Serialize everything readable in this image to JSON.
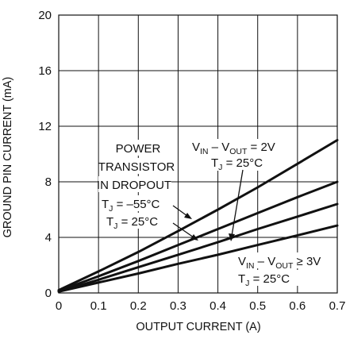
{
  "chart_data": {
    "type": "line",
    "xlabel": "OUTPUT CURRENT (A)",
    "ylabel": "GROUND PIN CURRENT (mA)",
    "xlim": [
      0,
      0.7
    ],
    "ylim": [
      0,
      20
    ],
    "x_ticks": [
      "0",
      "0.1",
      "0.2",
      "0.3",
      "0.4",
      "0.5",
      "0.6",
      "0.7"
    ],
    "y_ticks": [
      "0",
      "4",
      "8",
      "12",
      "16",
      "20"
    ],
    "grid": true,
    "series": [
      {
        "x": [
          0,
          0.1,
          0.2,
          0.3,
          0.4,
          0.5,
          0.6,
          0.7
        ],
        "y": [
          0.2,
          1.55,
          2.95,
          4.45,
          6.0,
          7.6,
          9.3,
          11.0
        ]
      },
      {
        "x": [
          0,
          0.1,
          0.2,
          0.3,
          0.4,
          0.5,
          0.6,
          0.7
        ],
        "y": [
          0.15,
          1.2,
          2.3,
          3.45,
          4.6,
          5.75,
          6.9,
          8.0
        ]
      },
      {
        "x": [
          0,
          0.1,
          0.2,
          0.3,
          0.4,
          0.5,
          0.6,
          0.7
        ],
        "y": [
          0.1,
          0.95,
          1.85,
          2.75,
          3.65,
          4.6,
          5.5,
          6.4
        ]
      },
      {
        "x": [
          0,
          0.1,
          0.2,
          0.3,
          0.4,
          0.5,
          0.6,
          0.7
        ],
        "y": [
          0.1,
          0.75,
          1.4,
          2.1,
          2.75,
          3.45,
          4.15,
          4.85
        ]
      }
    ],
    "annotations": {
      "power_line1": "POWER",
      "power_line2": "TRANSISTOR",
      "power_line3": "IN DROPOUT",
      "tj_m55_pre": "T",
      "tj_m55_sub": "J",
      "tj_m55_post": " = –55°C",
      "tj_25a_pre": "T",
      "tj_25a_sub": "J",
      "tj_25a_post": " = 25°C",
      "vin2_v1": "V",
      "vin2_sub1": "IN",
      "vin2_mid": " – V",
      "vin2_sub2": "OUT",
      "vin2_post": " = 2V",
      "tj_25b_pre": "T",
      "tj_25b_sub": "J",
      "tj_25b_post": " = 25°C",
      "vin3_v1": "V",
      "vin3_sub1": "IN",
      "vin3_mid": " – V",
      "vin3_sub2": "OUT",
      "vin3_post": " ≥ 3V",
      "tj_25c_pre": "T",
      "tj_25c_sub": "J",
      "tj_25c_post": " = 25°C"
    }
  }
}
